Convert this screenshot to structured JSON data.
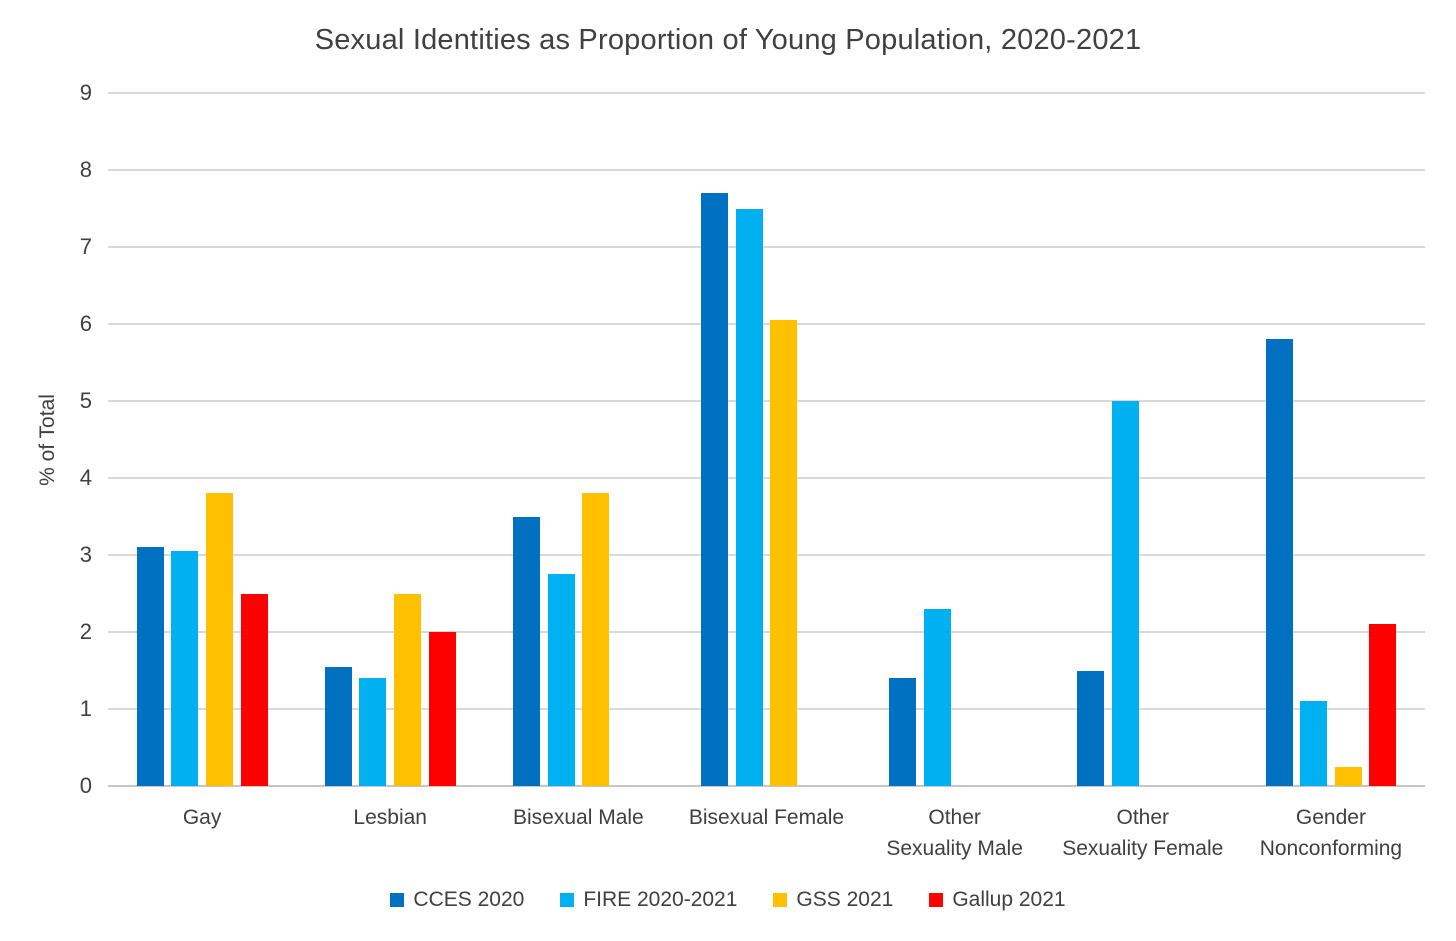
{
  "chart_data": {
    "type": "bar",
    "title": "Sexual Identities as Proportion of Young Population, 2020-2021",
    "xlabel": "",
    "ylabel": "% of Total",
    "ylim": [
      0,
      9
    ],
    "ytick_step": 1,
    "grid": true,
    "legend_position": "bottom",
    "categories": [
      [
        "Gay"
      ],
      [
        "Lesbian"
      ],
      [
        "Bisexual Male"
      ],
      [
        "Bisexual Female"
      ],
      [
        "Other",
        "Sexuality Male"
      ],
      [
        "Other",
        "Sexuality Female"
      ],
      [
        "Gender",
        "Nonconforming"
      ]
    ],
    "series": [
      {
        "name": "CCES 2020",
        "color": "#0070C0",
        "values": [
          3.1,
          1.55,
          3.5,
          7.7,
          1.4,
          1.5,
          5.8
        ]
      },
      {
        "name": "FIRE 2020-2021",
        "color": "#00B0F0",
        "values": [
          3.05,
          1.4,
          2.75,
          7.5,
          2.3,
          5.0,
          1.1
        ]
      },
      {
        "name": "GSS 2021",
        "color": "#FFC000",
        "values": [
          3.8,
          2.5,
          3.8,
          6.05,
          null,
          null,
          0.25
        ]
      },
      {
        "name": "Gallup 2021",
        "color": "#FF0000",
        "values": [
          2.5,
          2.0,
          null,
          null,
          null,
          null,
          2.1
        ]
      }
    ],
    "colors": {
      "grid": "#D9D9D9",
      "axis_text": "#404040",
      "background": "#FFFFFF"
    }
  }
}
